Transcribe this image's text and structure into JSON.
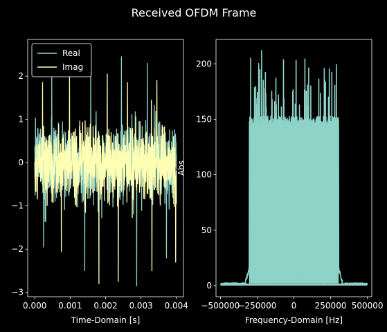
{
  "figure": {
    "title": "Received OFDM Frame",
    "background": "#000000",
    "foreground": "#ffffff"
  },
  "chart_data": [
    {
      "type": "line",
      "title": "",
      "xlabel": "Time-Domain [s]",
      "ylabel": "",
      "xlim": [
        -0.0002,
        0.0042
      ],
      "ylim": [
        -3.1,
        2.85
      ],
      "xticks": [
        0.0,
        0.001,
        0.002,
        0.003,
        0.004
      ],
      "xtick_labels": [
        "0.000",
        "0.001",
        "0.002",
        "0.003",
        "0.004"
      ],
      "yticks": [
        -3,
        -2,
        -1,
        0,
        1,
        2
      ],
      "ytick_labels": [
        "−3",
        "−2",
        "−1",
        "0",
        "1",
        "2"
      ],
      "legend": {
        "placement": "top-left",
        "entries": [
          "Real",
          "Imag"
        ]
      },
      "grid": false,
      "series": [
        {
          "name": "Real",
          "color": "#8dd3c7",
          "x_range": [
            0.0,
            0.004
          ],
          "samples": 800,
          "typical_range": [
            -1.3,
            1.3
          ],
          "extremes": [
            {
              "x": 0.00048,
              "y": 2.0
            },
            {
              "x": 0.00158,
              "y": 2.1
            },
            {
              "x": 0.00245,
              "y": 2.45
            },
            {
              "x": 0.00318,
              "y": 2.3
            },
            {
              "x": 0.00025,
              "y": -1.95
            },
            {
              "x": 0.00141,
              "y": -2.5
            },
            {
              "x": 0.00288,
              "y": -2.85
            },
            {
              "x": 0.00372,
              "y": -2.2
            }
          ]
        },
        {
          "name": "Imag",
          "color": "#ffffb3",
          "x_range": [
            0.0,
            0.004
          ],
          "samples": 800,
          "typical_range": [
            -1.3,
            1.3
          ],
          "extremes": [
            {
              "x": 0.00022,
              "y": 1.85
            },
            {
              "x": 0.00098,
              "y": 2.0
            },
            {
              "x": 0.00205,
              "y": 2.05
            },
            {
              "x": 0.00262,
              "y": 1.85
            },
            {
              "x": 0.00345,
              "y": 1.9
            },
            {
              "x": 0.00075,
              "y": -2.05
            },
            {
              "x": 0.00181,
              "y": -2.8
            },
            {
              "x": 0.00236,
              "y": -2.75
            },
            {
              "x": 0.00331,
              "y": -2.5
            },
            {
              "x": 0.00398,
              "y": -2.3
            }
          ]
        }
      ]
    },
    {
      "type": "line",
      "title": "",
      "xlabel": "Frequency-Domain [Hz]",
      "ylabel": "Abs",
      "xlim": [
        -530000,
        530000
      ],
      "ylim": [
        -10,
        222
      ],
      "xticks": [
        -500000,
        -250000,
        0,
        250000,
        500000
      ],
      "xtick_labels": [
        "−500000",
        "−250000",
        "0",
        "250000",
        "500000"
      ],
      "yticks": [
        0,
        50,
        100,
        150,
        200
      ],
      "ytick_labels": [
        "0",
        "50",
        "100",
        "150",
        "200"
      ],
      "grid": false,
      "series": [
        {
          "name": "",
          "color": "#8dd3c7",
          "x_range": [
            -500000,
            500000
          ],
          "occupied_band": [
            -305000,
            305000
          ],
          "band_edge_level": 145,
          "band_floor": 2,
          "outband_level": 1,
          "peak": {
            "x": -220000,
            "y": 212
          }
        }
      ]
    }
  ]
}
